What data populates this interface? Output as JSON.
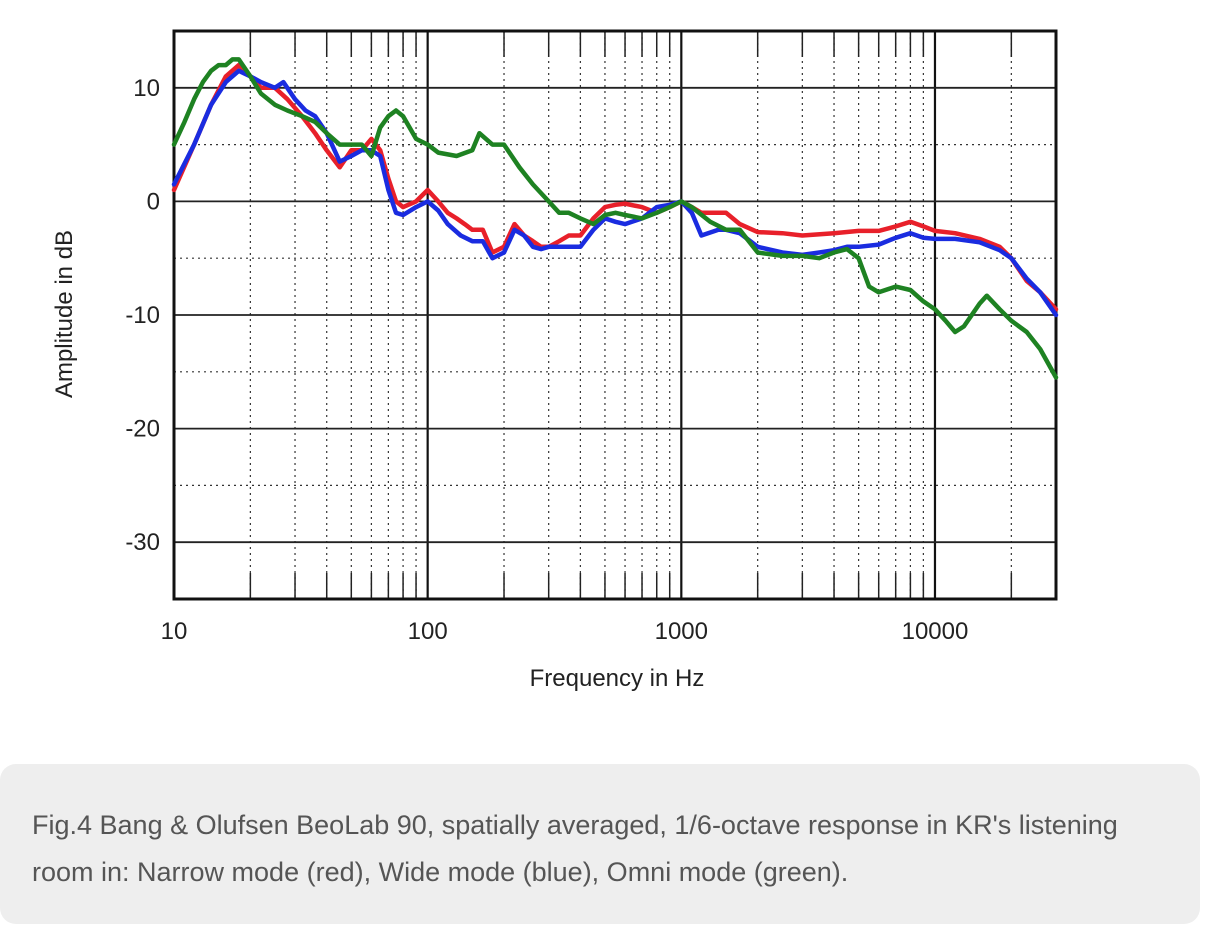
{
  "caption": "Fig.4 Bang & Olufsen BeoLab 90, spatially averaged, 1/6-octave response in KR's listening room in: Narrow mode (red), Wide mode (blue), Omni mode (green).",
  "chart_data": {
    "type": "line",
    "xscale": "log",
    "xlim": [
      10,
      30000
    ],
    "ylim": [
      -35,
      15
    ],
    "xlabel": "Frequency in Hz",
    "ylabel": "Amplitude in dB",
    "x_ticks": [
      10,
      100,
      1000,
      10000
    ],
    "x_tick_labels": [
      "10",
      "100",
      "1000",
      "10000"
    ],
    "y_ticks": [
      10,
      0,
      -10,
      -20,
      -30
    ],
    "y_tick_labels": [
      "10",
      "0",
      "-10",
      "-20",
      "-30"
    ],
    "grid": true,
    "series": [
      {
        "color": "#e8202a",
        "points": [
          [
            10,
            1
          ],
          [
            12,
            5
          ],
          [
            14,
            8.5
          ],
          [
            16,
            11
          ],
          [
            18,
            12
          ],
          [
            20,
            11
          ],
          [
            22,
            10
          ],
          [
            25,
            10
          ],
          [
            28,
            9
          ],
          [
            32,
            7.5
          ],
          [
            36,
            6
          ],
          [
            40,
            4.5
          ],
          [
            45,
            3
          ],
          [
            50,
            4.5
          ],
          [
            55,
            4.5
          ],
          [
            60,
            5.5
          ],
          [
            65,
            4.5
          ],
          [
            70,
            2
          ],
          [
            75,
            0
          ],
          [
            80,
            -0.5
          ],
          [
            90,
            0
          ],
          [
            100,
            1
          ],
          [
            110,
            0
          ],
          [
            120,
            -1
          ],
          [
            130,
            -1.5
          ],
          [
            140,
            -2
          ],
          [
            150,
            -2.5
          ],
          [
            165,
            -2.5
          ],
          [
            180,
            -4.5
          ],
          [
            200,
            -4
          ],
          [
            220,
            -2
          ],
          [
            240,
            -3
          ],
          [
            260,
            -3.5
          ],
          [
            280,
            -4
          ],
          [
            300,
            -4
          ],
          [
            330,
            -3.5
          ],
          [
            360,
            -3
          ],
          [
            400,
            -3
          ],
          [
            450,
            -1.5
          ],
          [
            500,
            -0.5
          ],
          [
            550,
            -0.3
          ],
          [
            600,
            -0.2
          ],
          [
            700,
            -0.5
          ],
          [
            800,
            -1
          ],
          [
            900,
            -0.5
          ],
          [
            1000,
            0
          ],
          [
            1100,
            -0.5
          ],
          [
            1200,
            -1
          ],
          [
            1500,
            -1
          ],
          [
            1700,
            -2
          ],
          [
            2000,
            -2.7
          ],
          [
            2500,
            -2.8
          ],
          [
            3000,
            -3
          ],
          [
            4000,
            -2.8
          ],
          [
            5000,
            -2.6
          ],
          [
            6000,
            -2.6
          ],
          [
            7000,
            -2.2
          ],
          [
            8000,
            -1.8
          ],
          [
            9000,
            -2.2
          ],
          [
            10000,
            -2.6
          ],
          [
            12000,
            -2.8
          ],
          [
            15000,
            -3.3
          ],
          [
            18000,
            -4
          ],
          [
            20000,
            -5
          ],
          [
            23000,
            -7
          ],
          [
            26000,
            -8
          ],
          [
            30000,
            -9.5
          ]
        ]
      },
      {
        "color": "#1a2ce0",
        "points": [
          [
            10,
            1.5
          ],
          [
            12,
            5
          ],
          [
            14,
            8.5
          ],
          [
            16,
            10.5
          ],
          [
            18,
            11.5
          ],
          [
            20,
            11
          ],
          [
            22,
            10.5
          ],
          [
            25,
            10
          ],
          [
            27,
            10.5
          ],
          [
            30,
            9
          ],
          [
            33,
            8
          ],
          [
            36,
            7.5
          ],
          [
            40,
            6
          ],
          [
            45,
            3.5
          ],
          [
            50,
            4
          ],
          [
            55,
            4.5
          ],
          [
            60,
            4.5
          ],
          [
            65,
            4
          ],
          [
            70,
            1
          ],
          [
            75,
            -1
          ],
          [
            80,
            -1.2
          ],
          [
            90,
            -0.5
          ],
          [
            100,
            0
          ],
          [
            110,
            -0.8
          ],
          [
            120,
            -2
          ],
          [
            135,
            -3
          ],
          [
            150,
            -3.5
          ],
          [
            165,
            -3.5
          ],
          [
            180,
            -5
          ],
          [
            200,
            -4.5
          ],
          [
            220,
            -2.5
          ],
          [
            240,
            -3
          ],
          [
            260,
            -4
          ],
          [
            280,
            -4.2
          ],
          [
            300,
            -4
          ],
          [
            330,
            -4
          ],
          [
            360,
            -4
          ],
          [
            400,
            -4
          ],
          [
            450,
            -2.5
          ],
          [
            500,
            -1.5
          ],
          [
            550,
            -1.8
          ],
          [
            600,
            -2
          ],
          [
            700,
            -1.5
          ],
          [
            800,
            -0.5
          ],
          [
            900,
            -0.3
          ],
          [
            1000,
            0
          ],
          [
            1100,
            -1
          ],
          [
            1200,
            -3
          ],
          [
            1400,
            -2.5
          ],
          [
            1500,
            -2.5
          ],
          [
            1700,
            -2.8
          ],
          [
            2000,
            -4
          ],
          [
            2500,
            -4.5
          ],
          [
            3000,
            -4.7
          ],
          [
            3500,
            -4.5
          ],
          [
            4000,
            -4.3
          ],
          [
            4500,
            -4
          ],
          [
            5000,
            -4
          ],
          [
            6000,
            -3.8
          ],
          [
            7000,
            -3.2
          ],
          [
            8000,
            -2.8
          ],
          [
            9000,
            -3.2
          ],
          [
            10000,
            -3.3
          ],
          [
            12000,
            -3.3
          ],
          [
            15000,
            -3.6
          ],
          [
            18000,
            -4.3
          ],
          [
            20000,
            -5
          ],
          [
            23000,
            -6.8
          ],
          [
            26000,
            -8
          ],
          [
            30000,
            -10
          ]
        ]
      },
      {
        "color": "#1e8222",
        "points": [
          [
            10,
            5
          ],
          [
            11,
            7
          ],
          [
            12,
            9
          ],
          [
            13,
            10.5
          ],
          [
            14,
            11.5
          ],
          [
            15,
            12
          ],
          [
            16,
            12
          ],
          [
            17,
            12.5
          ],
          [
            18,
            12.5
          ],
          [
            20,
            11
          ],
          [
            22,
            9.5
          ],
          [
            25,
            8.5
          ],
          [
            28,
            8
          ],
          [
            32,
            7.5
          ],
          [
            36,
            7
          ],
          [
            40,
            6
          ],
          [
            45,
            5
          ],
          [
            50,
            5
          ],
          [
            55,
            5
          ],
          [
            60,
            4
          ],
          [
            65,
            6.5
          ],
          [
            70,
            7.5
          ],
          [
            75,
            8
          ],
          [
            80,
            7.5
          ],
          [
            90,
            5.5
          ],
          [
            100,
            5
          ],
          [
            110,
            4.3
          ],
          [
            130,
            4
          ],
          [
            150,
            4.5
          ],
          [
            160,
            6
          ],
          [
            180,
            5
          ],
          [
            200,
            5
          ],
          [
            230,
            3
          ],
          [
            260,
            1.5
          ],
          [
            300,
            0
          ],
          [
            330,
            -1
          ],
          [
            360,
            -1
          ],
          [
            400,
            -1.5
          ],
          [
            450,
            -2
          ],
          [
            500,
            -1.2
          ],
          [
            550,
            -1
          ],
          [
            600,
            -1.2
          ],
          [
            700,
            -1.5
          ],
          [
            800,
            -1
          ],
          [
            900,
            -0.5
          ],
          [
            1000,
            0
          ],
          [
            1100,
            -0.5
          ],
          [
            1300,
            -1.8
          ],
          [
            1500,
            -2.5
          ],
          [
            1700,
            -2.5
          ],
          [
            2000,
            -4.5
          ],
          [
            2500,
            -4.8
          ],
          [
            3000,
            -4.8
          ],
          [
            3500,
            -5
          ],
          [
            4000,
            -4.5
          ],
          [
            4500,
            -4.2
          ],
          [
            5000,
            -5
          ],
          [
            5500,
            -7.5
          ],
          [
            6000,
            -8
          ],
          [
            7000,
            -7.5
          ],
          [
            8000,
            -7.8
          ],
          [
            9000,
            -8.8
          ],
          [
            10000,
            -9.5
          ],
          [
            11000,
            -10.5
          ],
          [
            12000,
            -11.5
          ],
          [
            13000,
            -11
          ],
          [
            15000,
            -9
          ],
          [
            16000,
            -8.3
          ],
          [
            18000,
            -9.5
          ],
          [
            20000,
            -10.5
          ],
          [
            23000,
            -11.5
          ],
          [
            26000,
            -13
          ],
          [
            30000,
            -15.5
          ]
        ]
      }
    ]
  }
}
